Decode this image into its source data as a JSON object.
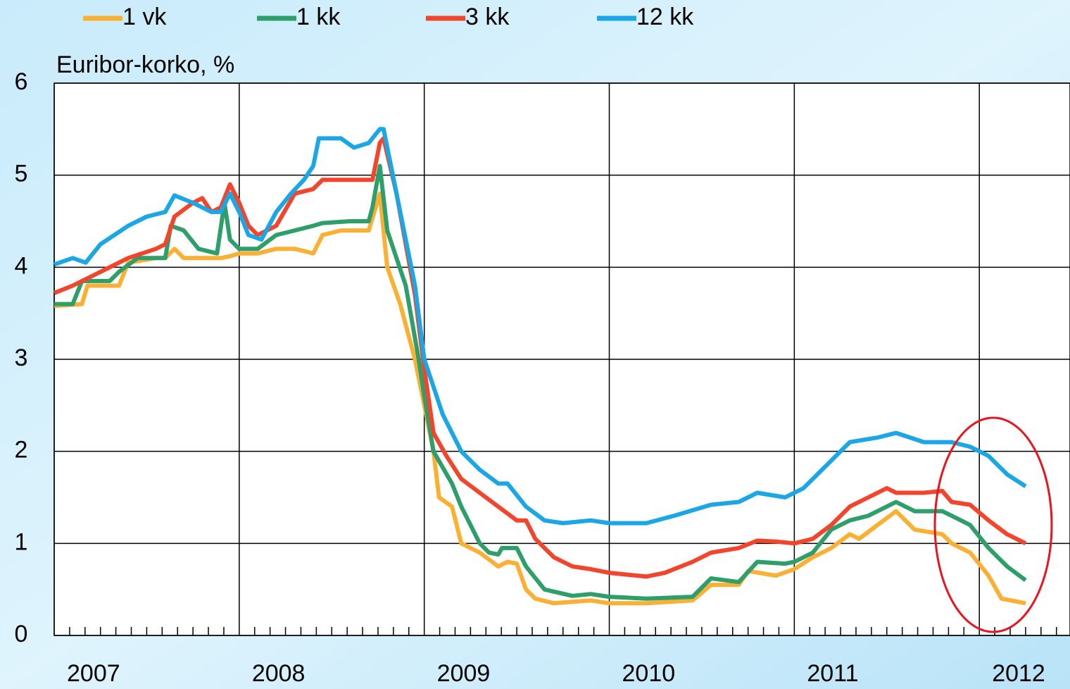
{
  "chart_data": {
    "type": "line",
    "ylabel": "Euribor-korko, %",
    "xlim": [
      2007,
      2012.49
    ],
    "xticks": [
      2007,
      2008,
      2009,
      2010,
      2011,
      2012
    ],
    "ylim": [
      0,
      6
    ],
    "yticks": [
      0,
      1,
      2,
      3,
      4,
      5,
      6
    ],
    "grid": true,
    "legend": "top",
    "series": [
      {
        "name": "1 vk",
        "color": "#fbb034",
        "x": [
          2007.0,
          2007.15,
          2007.18,
          2007.35,
          2007.4,
          2007.55,
          2007.6,
          2007.65,
          2007.7,
          2007.8,
          2007.9,
          2007.95,
          2008.0,
          2008.1,
          2008.2,
          2008.3,
          2008.4,
          2008.45,
          2008.55,
          2008.7,
          2008.76,
          2008.8,
          2008.87,
          2008.95,
          2009.0,
          2009.05,
          2009.08,
          2009.15,
          2009.2,
          2009.3,
          2009.4,
          2009.45,
          2009.5,
          2009.55,
          2009.6,
          2009.7,
          2009.9,
          2010.0,
          2010.2,
          2010.45,
          2010.55,
          2010.7,
          2010.75,
          2010.9,
          2011.0,
          2011.1,
          2011.2,
          2011.3,
          2011.35,
          2011.45,
          2011.55,
          2011.65,
          2011.8,
          2011.85,
          2011.95,
          2012.05,
          2012.12,
          2012.25
        ],
        "values": [
          3.58,
          3.6,
          3.8,
          3.8,
          4.05,
          4.1,
          4.1,
          4.2,
          4.1,
          4.1,
          4.1,
          4.12,
          4.15,
          4.15,
          4.2,
          4.2,
          4.15,
          4.35,
          4.4,
          4.4,
          4.8,
          4.0,
          3.6,
          3.0,
          2.5,
          2.0,
          1.5,
          1.4,
          1.0,
          0.9,
          0.75,
          0.8,
          0.78,
          0.5,
          0.4,
          0.35,
          0.38,
          0.35,
          0.35,
          0.38,
          0.55,
          0.55,
          0.7,
          0.65,
          0.72,
          0.85,
          0.95,
          1.1,
          1.05,
          1.2,
          1.35,
          1.15,
          1.1,
          1.0,
          0.9,
          0.65,
          0.4,
          0.35
        ]
      },
      {
        "name": "1 kk",
        "color": "#2e9e6b",
        "x": [
          2007.0,
          2007.1,
          2007.15,
          2007.3,
          2007.35,
          2007.45,
          2007.6,
          2007.63,
          2007.7,
          2007.78,
          2007.88,
          2007.92,
          2007.95,
          2008.0,
          2008.1,
          2008.2,
          2008.3,
          2008.4,
          2008.45,
          2008.6,
          2008.7,
          2008.72,
          2008.76,
          2008.8,
          2008.9,
          2008.97,
          2009.0,
          2009.05,
          2009.15,
          2009.2,
          2009.25,
          2009.3,
          2009.35,
          2009.4,
          2009.42,
          2009.5,
          2009.55,
          2009.65,
          2009.8,
          2009.9,
          2010.0,
          2010.2,
          2010.45,
          2010.55,
          2010.7,
          2010.8,
          2010.95,
          2011.0,
          2011.1,
          2011.2,
          2011.3,
          2011.4,
          2011.55,
          2011.65,
          2011.8,
          2011.85,
          2011.95,
          2012.05,
          2012.15,
          2012.25
        ],
        "values": [
          3.6,
          3.6,
          3.85,
          3.85,
          3.95,
          4.1,
          4.1,
          4.45,
          4.4,
          4.2,
          4.15,
          4.7,
          4.3,
          4.2,
          4.2,
          4.35,
          4.4,
          4.45,
          4.48,
          4.5,
          4.5,
          4.65,
          5.1,
          4.4,
          3.8,
          3.0,
          2.6,
          2.0,
          1.65,
          1.4,
          1.2,
          1.0,
          0.9,
          0.88,
          0.95,
          0.95,
          0.75,
          0.5,
          0.43,
          0.45,
          0.42,
          0.4,
          0.42,
          0.62,
          0.58,
          0.8,
          0.78,
          0.8,
          0.9,
          1.15,
          1.25,
          1.3,
          1.45,
          1.35,
          1.35,
          1.3,
          1.2,
          0.95,
          0.75,
          0.6
        ]
      },
      {
        "name": "3 kk",
        "color": "#f2452c",
        "x": [
          2007.0,
          2007.1,
          2007.25,
          2007.4,
          2007.55,
          2007.6,
          2007.65,
          2007.75,
          2007.8,
          2007.85,
          2007.9,
          2007.95,
          2008.0,
          2008.05,
          2008.1,
          2008.2,
          2008.3,
          2008.4,
          2008.45,
          2008.6,
          2008.72,
          2008.76,
          2008.78,
          2008.85,
          2008.95,
          2009.0,
          2009.05,
          2009.12,
          2009.2,
          2009.3,
          2009.4,
          2009.5,
          2009.55,
          2009.6,
          2009.7,
          2009.8,
          2009.9,
          2010.0,
          2010.2,
          2010.3,
          2010.45,
          2010.55,
          2010.7,
          2010.8,
          2010.9,
          2011.0,
          2011.1,
          2011.2,
          2011.3,
          2011.4,
          2011.5,
          2011.55,
          2011.7,
          2011.8,
          2011.85,
          2011.95,
          2012.05,
          2012.15,
          2012.25
        ],
        "values": [
          3.72,
          3.8,
          3.95,
          4.1,
          4.2,
          4.25,
          4.55,
          4.7,
          4.75,
          4.6,
          4.65,
          4.9,
          4.7,
          4.45,
          4.35,
          4.45,
          4.8,
          4.85,
          4.95,
          4.95,
          4.95,
          5.35,
          5.4,
          4.8,
          3.7,
          2.9,
          2.2,
          1.95,
          1.7,
          1.55,
          1.4,
          1.25,
          1.25,
          1.05,
          0.85,
          0.75,
          0.72,
          0.68,
          0.64,
          0.68,
          0.8,
          0.9,
          0.95,
          1.03,
          1.02,
          1.0,
          1.05,
          1.2,
          1.4,
          1.5,
          1.6,
          1.55,
          1.55,
          1.57,
          1.45,
          1.42,
          1.25,
          1.1,
          1.0
        ]
      },
      {
        "name": "12 kk",
        "color": "#1ba6e6",
        "x": [
          2007.0,
          2007.1,
          2007.17,
          2007.25,
          2007.4,
          2007.5,
          2007.6,
          2007.65,
          2007.75,
          2007.85,
          2007.9,
          2007.95,
          2008.0,
          2008.05,
          2008.12,
          2008.2,
          2008.28,
          2008.35,
          2008.4,
          2008.43,
          2008.55,
          2008.62,
          2008.7,
          2008.76,
          2008.78,
          2008.85,
          2008.95,
          2009.0,
          2009.1,
          2009.2,
          2009.3,
          2009.4,
          2009.45,
          2009.55,
          2009.65,
          2009.75,
          2009.9,
          2010.0,
          2010.2,
          2010.35,
          2010.55,
          2010.7,
          2010.8,
          2010.95,
          2011.05,
          2011.2,
          2011.3,
          2011.45,
          2011.55,
          2011.7,
          2011.85,
          2011.95,
          2012.05,
          2012.15,
          2012.25
        ],
        "values": [
          4.03,
          4.1,
          4.05,
          4.25,
          4.45,
          4.55,
          4.6,
          4.78,
          4.7,
          4.6,
          4.6,
          4.8,
          4.6,
          4.35,
          4.3,
          4.6,
          4.8,
          4.95,
          5.1,
          5.4,
          5.4,
          5.3,
          5.35,
          5.5,
          5.5,
          4.8,
          3.8,
          3.0,
          2.4,
          2.0,
          1.8,
          1.65,
          1.65,
          1.4,
          1.25,
          1.22,
          1.25,
          1.22,
          1.22,
          1.3,
          1.42,
          1.45,
          1.55,
          1.5,
          1.6,
          1.9,
          2.1,
          2.15,
          2.2,
          2.1,
          2.1,
          2.05,
          1.95,
          1.75,
          1.62
        ]
      }
    ]
  }
}
